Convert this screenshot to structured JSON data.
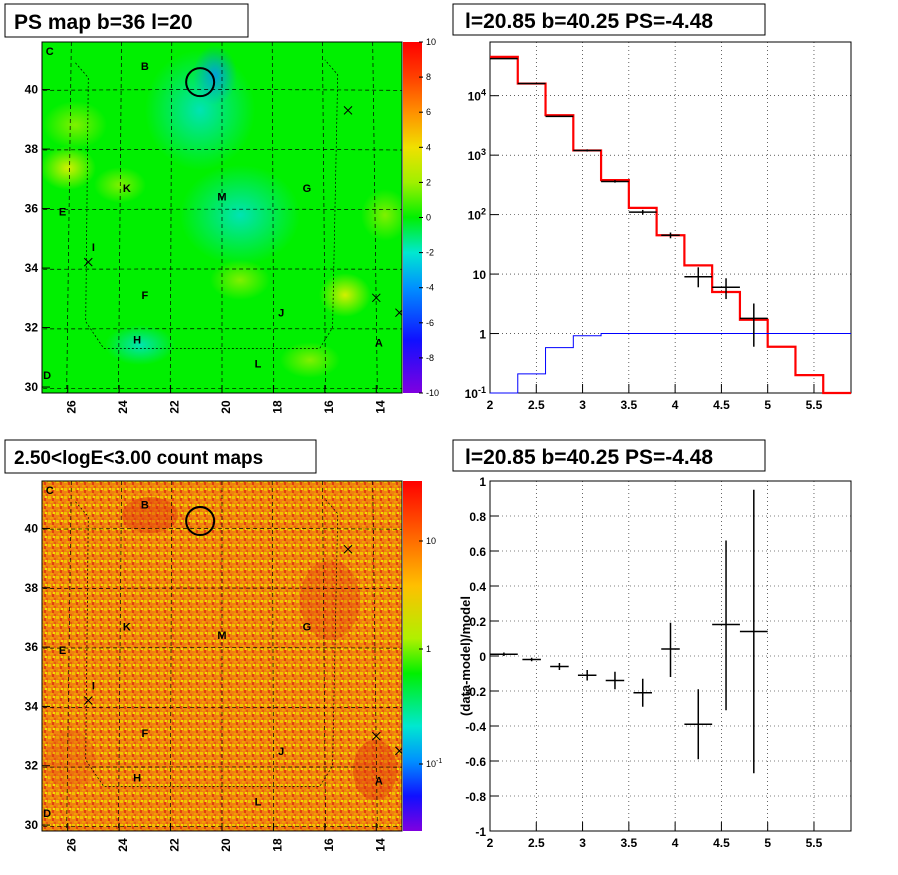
{
  "panels": {
    "tl": {
      "title": "PS map b=36 l=20"
    },
    "tr": {
      "title": "l=20.85 b=40.25 PS=-4.48"
    },
    "bl": {
      "title": "2.50<logE<3.00 count maps"
    },
    "br": {
      "title": "l=20.85 b=40.25 PS=-4.48"
    }
  },
  "chart_data": [
    {
      "type": "heatmap",
      "title": "PS map b=36 l=20",
      "xlim": [
        27,
        13
      ],
      "ylim": [
        29.8,
        41.6
      ],
      "x_ticks": [
        "26",
        "24",
        "22",
        "20",
        "18",
        "16",
        "14"
      ],
      "y_ticks": [
        "30",
        "32",
        "34",
        "36",
        "38",
        "40"
      ],
      "colorbar": {
        "min": -10,
        "max": 10,
        "ticks": [
          "10",
          "8",
          "6",
          "4",
          "2",
          "0",
          "-2",
          "-4",
          "-6",
          "-8",
          "-10"
        ]
      },
      "regions": [
        {
          "label": "C",
          "l": 26.7,
          "b": 41.3
        },
        {
          "label": "B",
          "l": 23.0,
          "b": 40.8
        },
        {
          "label": "K",
          "l": 23.7,
          "b": 36.7
        },
        {
          "label": "M",
          "l": 20.0,
          "b": 36.4
        },
        {
          "label": "G",
          "l": 16.7,
          "b": 36.7
        },
        {
          "label": "E",
          "l": 26.2,
          "b": 35.9
        },
        {
          "label": "I",
          "l": 25.0,
          "b": 34.7
        },
        {
          "label": "F",
          "l": 23.0,
          "b": 33.1
        },
        {
          "label": "J",
          "l": 17.7,
          "b": 32.5
        },
        {
          "label": "H",
          "l": 23.3,
          "b": 31.6
        },
        {
          "label": "A",
          "l": 13.9,
          "b": 31.5
        },
        {
          "label": "L",
          "l": 18.6,
          "b": 30.8
        },
        {
          "label": "D",
          "l": 26.8,
          "b": 30.4
        }
      ],
      "marker_circle": {
        "l": 20.85,
        "b": 40.25
      },
      "crosses": [
        {
          "l": 15.1,
          "b": 39.3
        },
        {
          "l": 25.2,
          "b": 34.2
        },
        {
          "l": 14.0,
          "b": 33.0
        },
        {
          "l": 13.1,
          "b": 32.5
        }
      ],
      "colors": {
        "background": "#00f000",
        "hot": "#f0e000",
        "cool": "#00e8d0"
      }
    },
    {
      "type": "line",
      "title": "l=20.85 b=40.25 PS=-4.48",
      "xlim": [
        2.0,
        5.9
      ],
      "ylim": [
        0.1,
        80000
      ],
      "log_y": true,
      "x_ticks": [
        "2",
        "2.5",
        "3",
        "3.5",
        "4",
        "4.5",
        "5",
        "5.5"
      ],
      "y_ticks": [
        "10^-1",
        "1",
        "10",
        "10^2",
        "10^3",
        "10^4"
      ],
      "grid": true,
      "series": [
        {
          "kind": "step",
          "color": "#ff0000",
          "edges": [
            2.0,
            2.3,
            2.6,
            2.9,
            3.2,
            3.5,
            3.8,
            4.1,
            4.4,
            4.7,
            5.0,
            5.3,
            5.6,
            5.9
          ],
          "values": [
            45000,
            16000,
            4700,
            1200,
            380,
            130,
            45,
            14,
            5,
            1.7,
            0.6,
            0.2,
            0.1
          ]
        },
        {
          "kind": "step",
          "color": "#0000ff",
          "edges": [
            2.0,
            2.3,
            2.6,
            2.9,
            3.2,
            3.5,
            3.8,
            4.1,
            4.4,
            4.7,
            5.0,
            5.3,
            5.6,
            5.9
          ],
          "values": [
            0.1,
            0.21,
            0.58,
            0.92,
            1.0,
            1.0,
            1.0,
            1.0,
            1.0,
            1.0,
            1.0,
            1.0,
            1.0
          ]
        },
        {
          "kind": "errorbar",
          "color": "#000000",
          "points": [
            {
              "x": 2.15,
              "xerr": 0.15,
              "y": 42000,
              "ylo": 42000,
              "yhi": 42000
            },
            {
              "x": 2.45,
              "xerr": 0.15,
              "y": 16000,
              "ylo": 16000,
              "yhi": 16000
            },
            {
              "x": 2.75,
              "xerr": 0.15,
              "y": 4500,
              "ylo": 4400,
              "yhi": 4600
            },
            {
              "x": 3.05,
              "xerr": 0.15,
              "y": 1200,
              "ylo": 1150,
              "yhi": 1250
            },
            {
              "x": 3.35,
              "xerr": 0.15,
              "y": 360,
              "ylo": 345,
              "yhi": 380
            },
            {
              "x": 3.65,
              "xerr": 0.15,
              "y": 110,
              "ylo": 100,
              "yhi": 120
            },
            {
              "x": 3.95,
              "xerr": 0.1,
              "y": 45,
              "ylo": 40,
              "yhi": 50
            },
            {
              "x": 4.25,
              "xerr": 0.15,
              "y": 9,
              "ylo": 6,
              "yhi": 13
            },
            {
              "x": 4.55,
              "xerr": 0.15,
              "y": 6,
              "ylo": 3.8,
              "yhi": 8.5
            },
            {
              "x": 4.85,
              "xerr": 0.15,
              "y": 1.8,
              "ylo": 0.6,
              "yhi": 3.2
            }
          ]
        }
      ]
    },
    {
      "type": "heatmap",
      "title": "2.50<logE<3.00 count maps",
      "xlim": [
        27,
        13
      ],
      "ylim": [
        29.8,
        41.6
      ],
      "x_ticks": [
        "26",
        "24",
        "22",
        "20",
        "18",
        "16",
        "14"
      ],
      "y_ticks": [
        "30",
        "32",
        "34",
        "36",
        "38",
        "40"
      ],
      "colorbar": {
        "log": true,
        "ticks": [
          "10",
          "1",
          "10^-1"
        ]
      },
      "colors": {
        "background": "#f07a10",
        "hot": "#e03a10",
        "cool": "#f0c800"
      }
    },
    {
      "type": "scatter",
      "title": "l=20.85 b=40.25 PS=-4.48",
      "ylabel": "(data-model)/model",
      "xlim": [
        2.0,
        5.9
      ],
      "ylim": [
        -1,
        1
      ],
      "x_ticks": [
        "2",
        "2.5",
        "3",
        "3.5",
        "4",
        "4.5",
        "5",
        "5.5"
      ],
      "y_ticks": [
        "1",
        "0.8",
        "0.6",
        "0.4",
        "0.2",
        "0",
        "-0.2",
        "-0.4",
        "-0.6",
        "-0.8",
        "-1"
      ],
      "grid": true,
      "points": [
        {
          "x": 2.15,
          "xerr": 0.15,
          "y": 0.01,
          "ylo": 0.0,
          "yhi": 0.02
        },
        {
          "x": 2.45,
          "xerr": 0.1,
          "y": -0.02,
          "ylo": -0.03,
          "yhi": -0.01
        },
        {
          "x": 2.75,
          "xerr": 0.1,
          "y": -0.06,
          "ylo": -0.08,
          "yhi": -0.04
        },
        {
          "x": 3.05,
          "xerr": 0.1,
          "y": -0.11,
          "ylo": -0.14,
          "yhi": -0.08
        },
        {
          "x": 3.35,
          "xerr": 0.1,
          "y": -0.14,
          "ylo": -0.19,
          "yhi": -0.09
        },
        {
          "x": 3.65,
          "xerr": 0.1,
          "y": -0.21,
          "ylo": -0.29,
          "yhi": -0.13
        },
        {
          "x": 3.95,
          "xerr": 0.1,
          "y": 0.04,
          "ylo": -0.12,
          "yhi": 0.19
        },
        {
          "x": 4.25,
          "xerr": 0.15,
          "y": -0.39,
          "ylo": -0.59,
          "yhi": -0.19
        },
        {
          "x": 4.55,
          "xerr": 0.15,
          "y": 0.18,
          "ylo": -0.31,
          "yhi": 0.66
        },
        {
          "x": 4.85,
          "xerr": 0.15,
          "y": 0.14,
          "ylo": -0.67,
          "yhi": 0.95
        }
      ]
    }
  ]
}
